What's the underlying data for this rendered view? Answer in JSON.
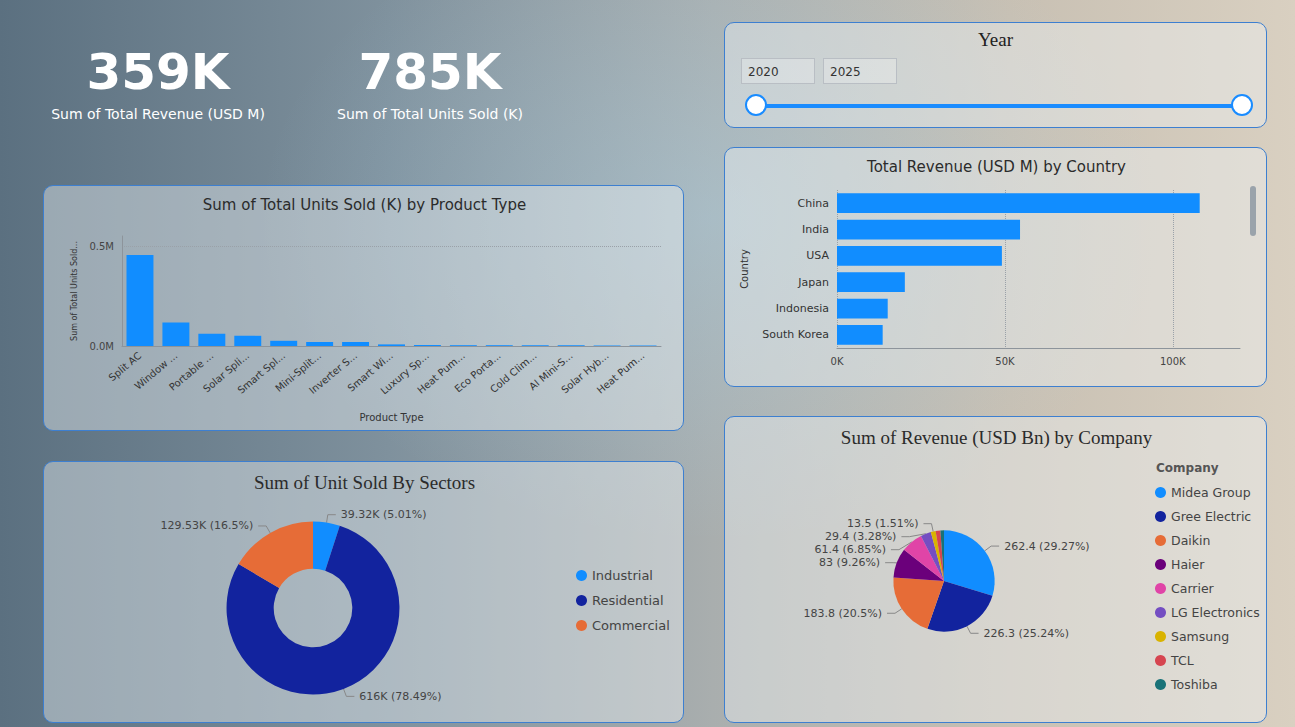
{
  "cards": [
    {
      "value": "359K",
      "label": "Sum of Total Revenue (USD M)"
    },
    {
      "value": "785K",
      "label": "Sum of Total Units Sold (K)"
    }
  ],
  "slicer": {
    "title": "Year",
    "range": [
      2020,
      2025
    ]
  },
  "chart_data": [
    {
      "type": "bar",
      "title": "Sum of Total Units Sold (K) by Product Type",
      "x_label": "Product Type",
      "y_label": "Sum of Total Units Sold...",
      "categories": [
        "Split AC",
        "Window ...",
        "Portable ...",
        "Solar Spli...",
        "Smart Spl...",
        "Mini-Split...",
        "Inverter S...",
        "Smart Wi...",
        "Luxury Sp...",
        "Heat Pum...",
        "Eco Porta...",
        "Cold Clim...",
        "AI Mini-S...",
        "Solar Hyb...",
        "Heat Pum..."
      ],
      "values": [
        455000,
        117000,
        61000,
        51000,
        26000,
        20000,
        20000,
        8000,
        5000,
        4000,
        4000,
        4000,
        4000,
        3000,
        3000
      ],
      "color": "#118dff",
      "ylim": [
        0,
        550000
      ],
      "yticks": [
        {
          "value": 0,
          "label": "0.0M"
        },
        {
          "value": 500000,
          "label": "0.5M"
        }
      ],
      "grid": true
    },
    {
      "type": "bar",
      "orientation": "horizontal",
      "title": "Total Revenue (USD M) by Country",
      "y_label": "Country",
      "categories": [
        "China",
        "India",
        "USA",
        "Japan",
        "Indonesia",
        "South Korea"
      ],
      "values": [
        108000,
        54500,
        49100,
        20200,
        15100,
        13600
      ],
      "color": "#118dff",
      "xlim": [
        0,
        120000
      ],
      "xticks": [
        {
          "value": 0,
          "label": "0K"
        },
        {
          "value": 50000,
          "label": "50K"
        },
        {
          "value": 100000,
          "label": "100K"
        }
      ],
      "grid": true
    },
    {
      "type": "donut",
      "title": "Sum of Unit Sold By Sectors",
      "categories": [
        "Industrial",
        "Residential",
        "Commercial"
      ],
      "values": [
        39.32,
        616,
        129.53
      ],
      "value_labels": [
        "39.32K (5.01%)",
        "616K (78.49%)",
        "129.53K (16.5%)"
      ],
      "colors": [
        "#118dff",
        "#12239e",
        "#e66c37"
      ],
      "legend": "right",
      "data_labels": true
    },
    {
      "type": "pie",
      "title": "Sum of Revenue (USD Bn) by Company",
      "legend_title": "Company",
      "categories": [
        "Midea Group",
        "Gree Electric",
        "Daikin",
        "Haier",
        "Carrier",
        "LG Electronics",
        "Samsung",
        "TCL",
        "Toshiba"
      ],
      "values": [
        262.4,
        226.3,
        183.8,
        83,
        61.4,
        29.4,
        13.5,
        13.5,
        10
      ],
      "value_labels": [
        "262.4 (29.27%)",
        "226.3 (25.24%)",
        "183.8 (20.5%)",
        "83 (9.26%)",
        "61.4 (6.85%)",
        "29.4 (3.28%)",
        "13.5 (1.51%)",
        null,
        null
      ],
      "colors": [
        "#118dff",
        "#12239e",
        "#e66c37",
        "#6b007b",
        "#e044a7",
        "#744ec2",
        "#d9b300",
        "#d64550",
        "#197278"
      ],
      "legend": "right",
      "data_labels": true
    }
  ]
}
